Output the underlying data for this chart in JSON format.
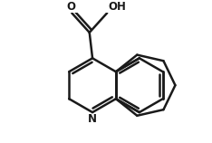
{
  "background_color": "#ffffff",
  "line_color": "#1a1a1a",
  "lw": 1.8,
  "fig_w": 2.34,
  "fig_h": 1.58,
  "dpi": 100,
  "xlim": [
    -0.05,
    1.05
  ],
  "ylim": [
    -0.08,
    0.78
  ]
}
